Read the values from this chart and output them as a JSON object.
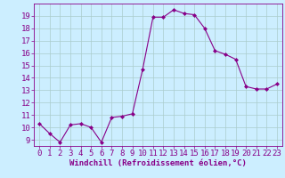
{
  "x": [
    0,
    1,
    2,
    3,
    4,
    5,
    6,
    7,
    8,
    9,
    10,
    11,
    12,
    13,
    14,
    15,
    16,
    17,
    18,
    19,
    20,
    21,
    22,
    23
  ],
  "y": [
    10.3,
    9.5,
    8.8,
    10.2,
    10.3,
    10.0,
    8.8,
    10.8,
    10.9,
    11.1,
    14.7,
    18.9,
    18.9,
    19.5,
    19.2,
    19.1,
    18.0,
    16.2,
    15.9,
    15.5,
    13.3,
    13.1,
    13.1,
    13.5
  ],
  "line_color": "#880088",
  "marker": "D",
  "marker_size": 2.0,
  "bg_color": "#cceeff",
  "grid_color": "#aacccc",
  "xlabel": "Windchill (Refroidissement éolien,°C)",
  "xlabel_fontsize": 6.5,
  "tick_fontsize": 6.5,
  "ylim": [
    8.5,
    20.0
  ],
  "yticks": [
    9,
    10,
    11,
    12,
    13,
    14,
    15,
    16,
    17,
    18,
    19
  ],
  "xlim": [
    -0.5,
    23.5
  ],
  "xticks": [
    0,
    1,
    2,
    3,
    4,
    5,
    6,
    7,
    8,
    9,
    10,
    11,
    12,
    13,
    14,
    15,
    16,
    17,
    18,
    19,
    20,
    21,
    22,
    23
  ],
  "tick_color": "#880088",
  "axis_color": "#880088",
  "linewidth": 0.8
}
